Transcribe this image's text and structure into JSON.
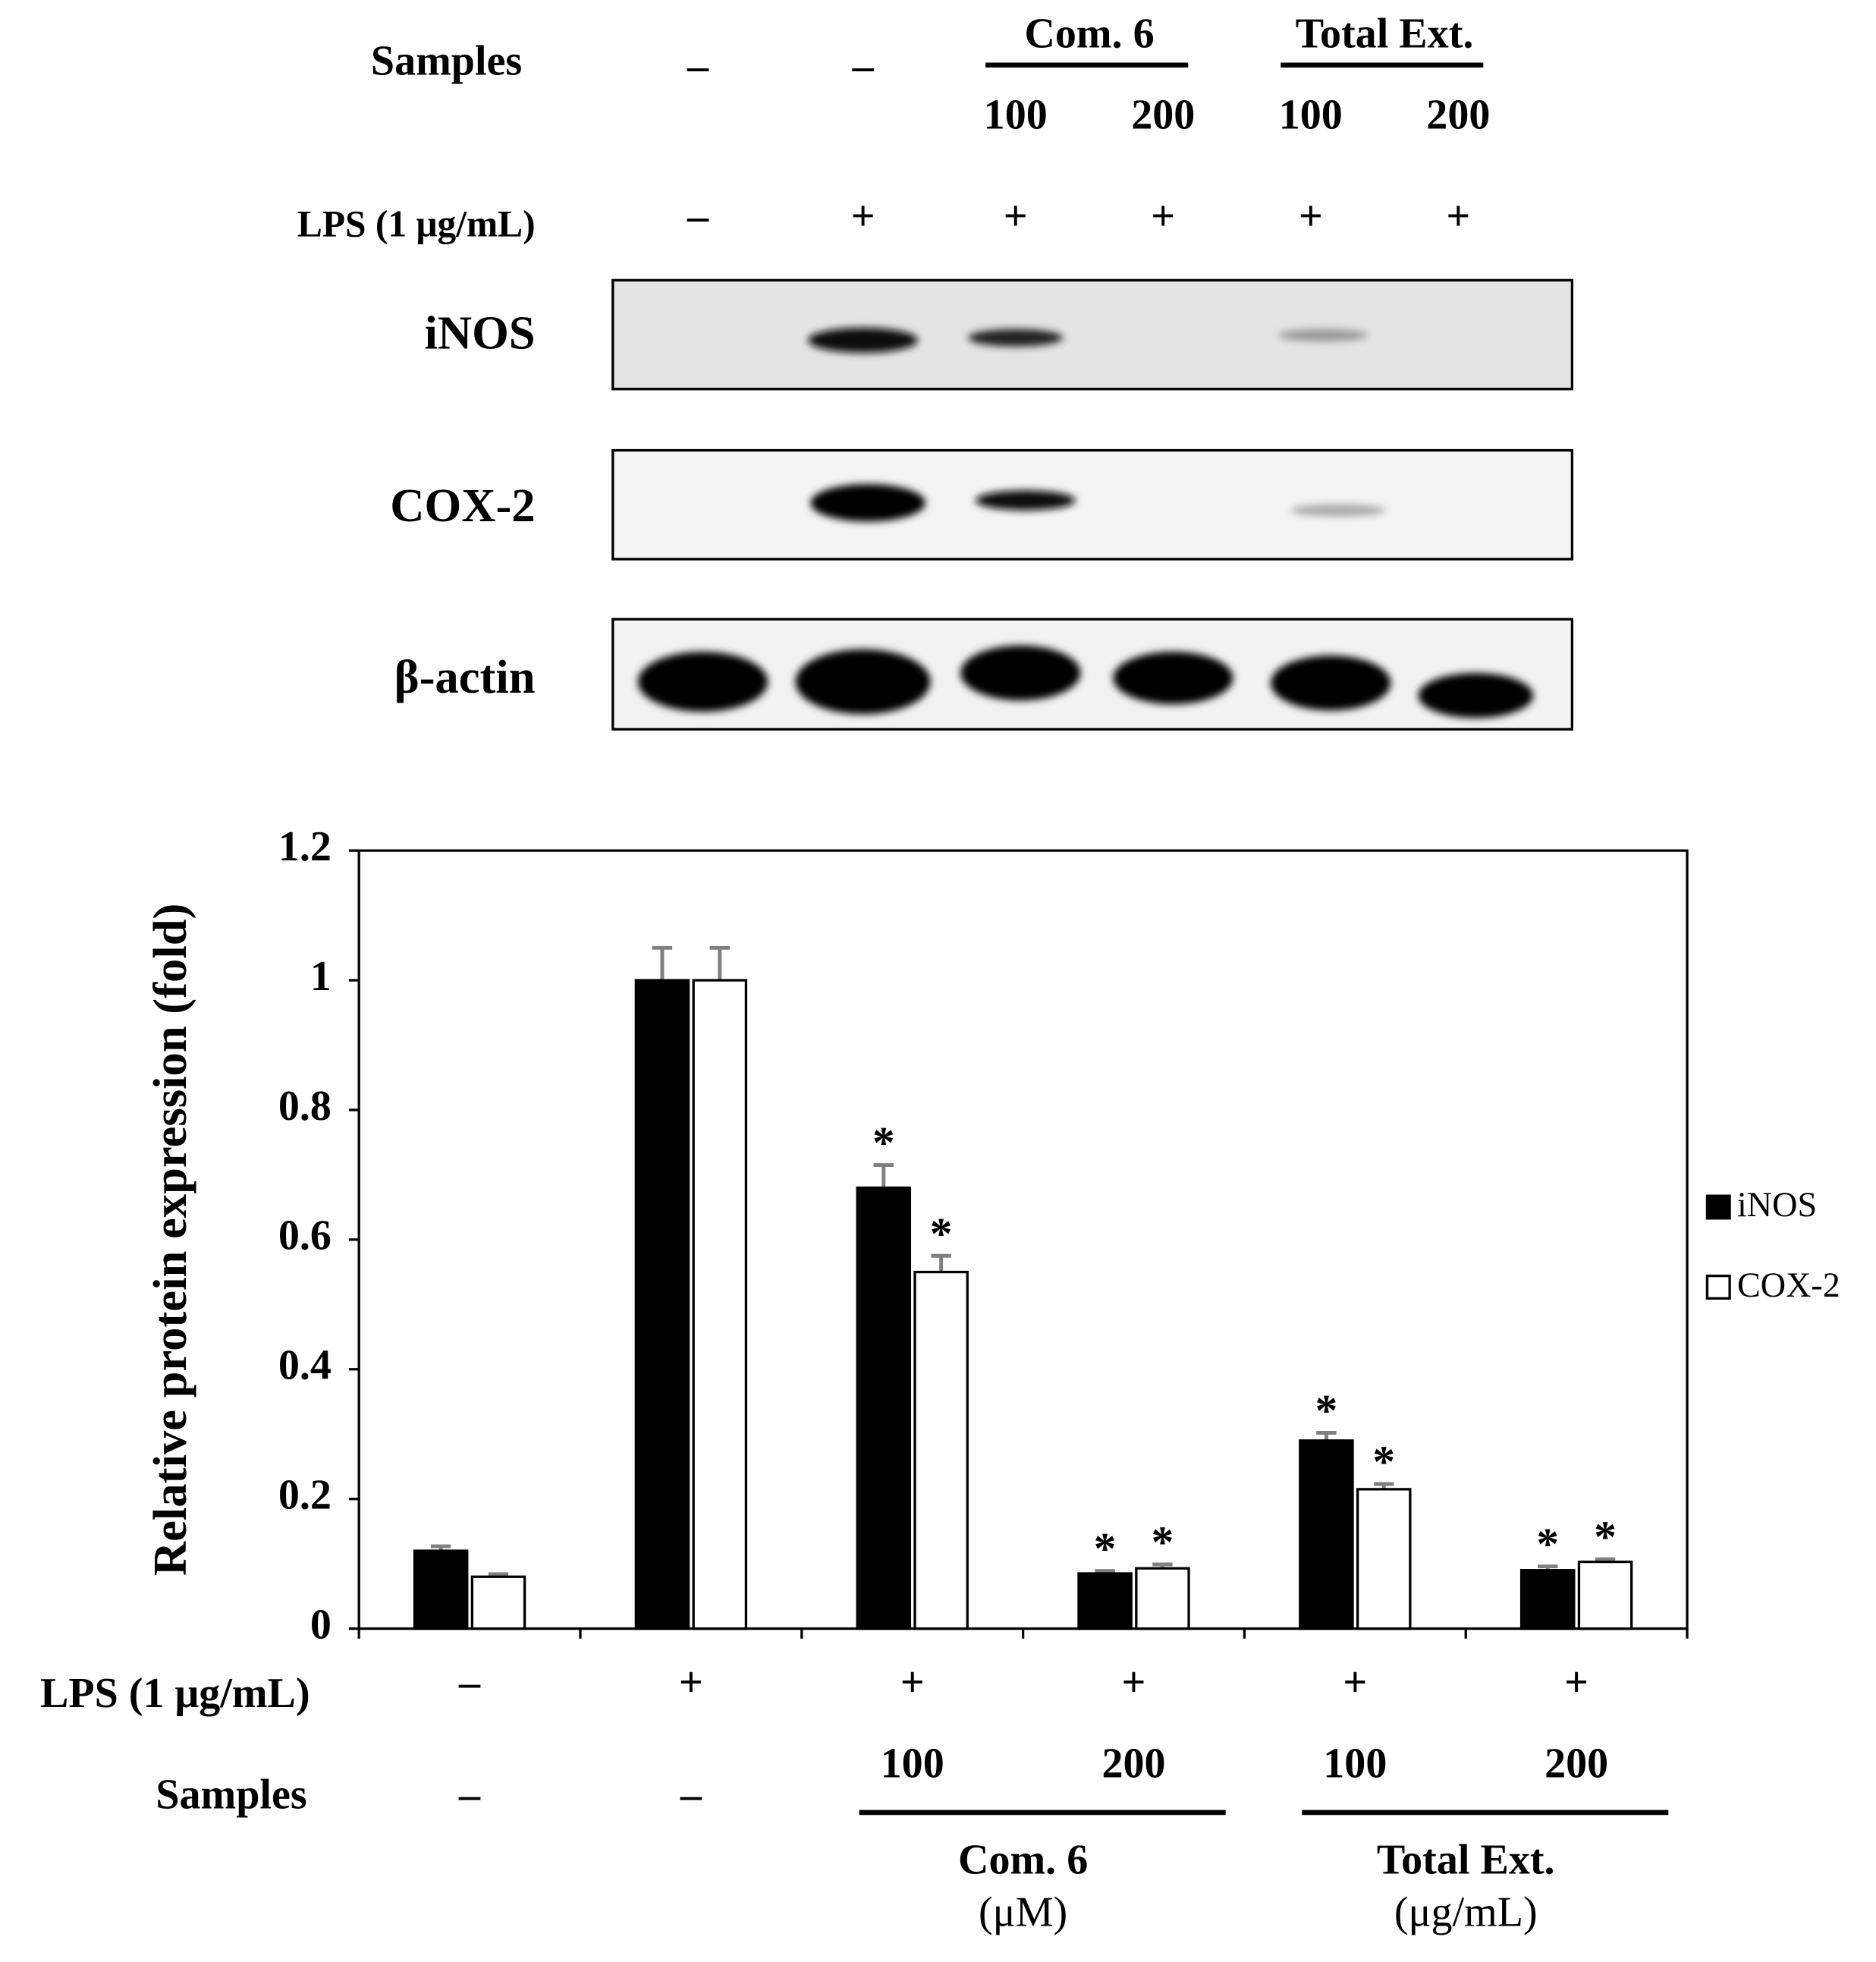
{
  "blot": {
    "samples_label": "Samples",
    "samples": [
      "–",
      "–"
    ],
    "groups": [
      {
        "name": "Com. 6",
        "doses": [
          "100",
          "200"
        ]
      },
      {
        "name": "Total Ext.",
        "doses": [
          "100",
          "200"
        ]
      }
    ],
    "lps_label": "LPS (1 μg/mL)",
    "lps": [
      "–",
      "+",
      "+",
      "+",
      "+",
      "+"
    ],
    "bands": [
      "iNOS",
      "COX-2",
      "β-actin"
    ]
  },
  "chart_data": {
    "type": "bar",
    "y_label": "Relative protein expression (fold)",
    "lps_label": "LPS (1 μg/mL)",
    "lps": [
      "–",
      "+",
      "+",
      "+",
      "+",
      "+"
    ],
    "samples_label": "Samples",
    "categories": [
      "–",
      "–",
      "100",
      "200",
      "100",
      "200"
    ],
    "groups": [
      {
        "name": "Com. 6",
        "unit": "(μM)"
      },
      {
        "name": "Total Ext.",
        "unit": "(μg/mL)"
      }
    ],
    "series": [
      {
        "name": "iNOS",
        "color": "#000000",
        "values": [
          0.12,
          1.0,
          0.68,
          0.085,
          0.29,
          0.09
        ],
        "errors": [
          0.007,
          0.05,
          0.035,
          0.004,
          0.012,
          0.006
        ],
        "significance": [
          null,
          null,
          "*",
          "*",
          "*",
          "*"
        ]
      },
      {
        "name": "COX-2",
        "color": "#ffffff",
        "values": [
          0.08,
          1.0,
          0.55,
          0.093,
          0.215,
          0.103
        ],
        "errors": [
          0.004,
          0.05,
          0.025,
          0.006,
          0.008,
          0.004
        ],
        "significance": [
          null,
          null,
          "*",
          "*",
          "*",
          "*"
        ]
      }
    ],
    "error_color": "#808080",
    "ylim": [
      0,
      1.2
    ],
    "yticks": [
      0,
      0.2,
      0.4,
      0.6,
      0.8,
      1,
      1.2
    ],
    "legend": "right"
  }
}
